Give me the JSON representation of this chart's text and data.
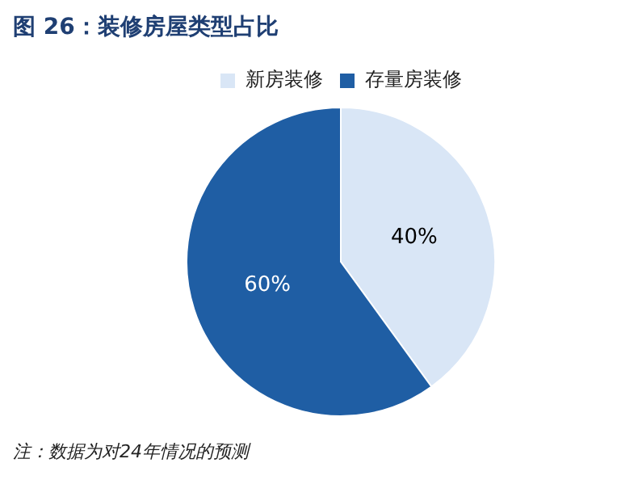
{
  "chart_data": {
    "type": "pie",
    "title": "图 26：装修房屋类型占比",
    "categories": [
      "新房装修",
      "存量房装修"
    ],
    "values": [
      40,
      60
    ],
    "colors": [
      "#d9e6f6",
      "#1f5ea4"
    ],
    "value_labels": [
      "40%",
      "60%"
    ],
    "legend": "top",
    "annotations": [
      "注：数据为对24年情况的预测"
    ]
  }
}
